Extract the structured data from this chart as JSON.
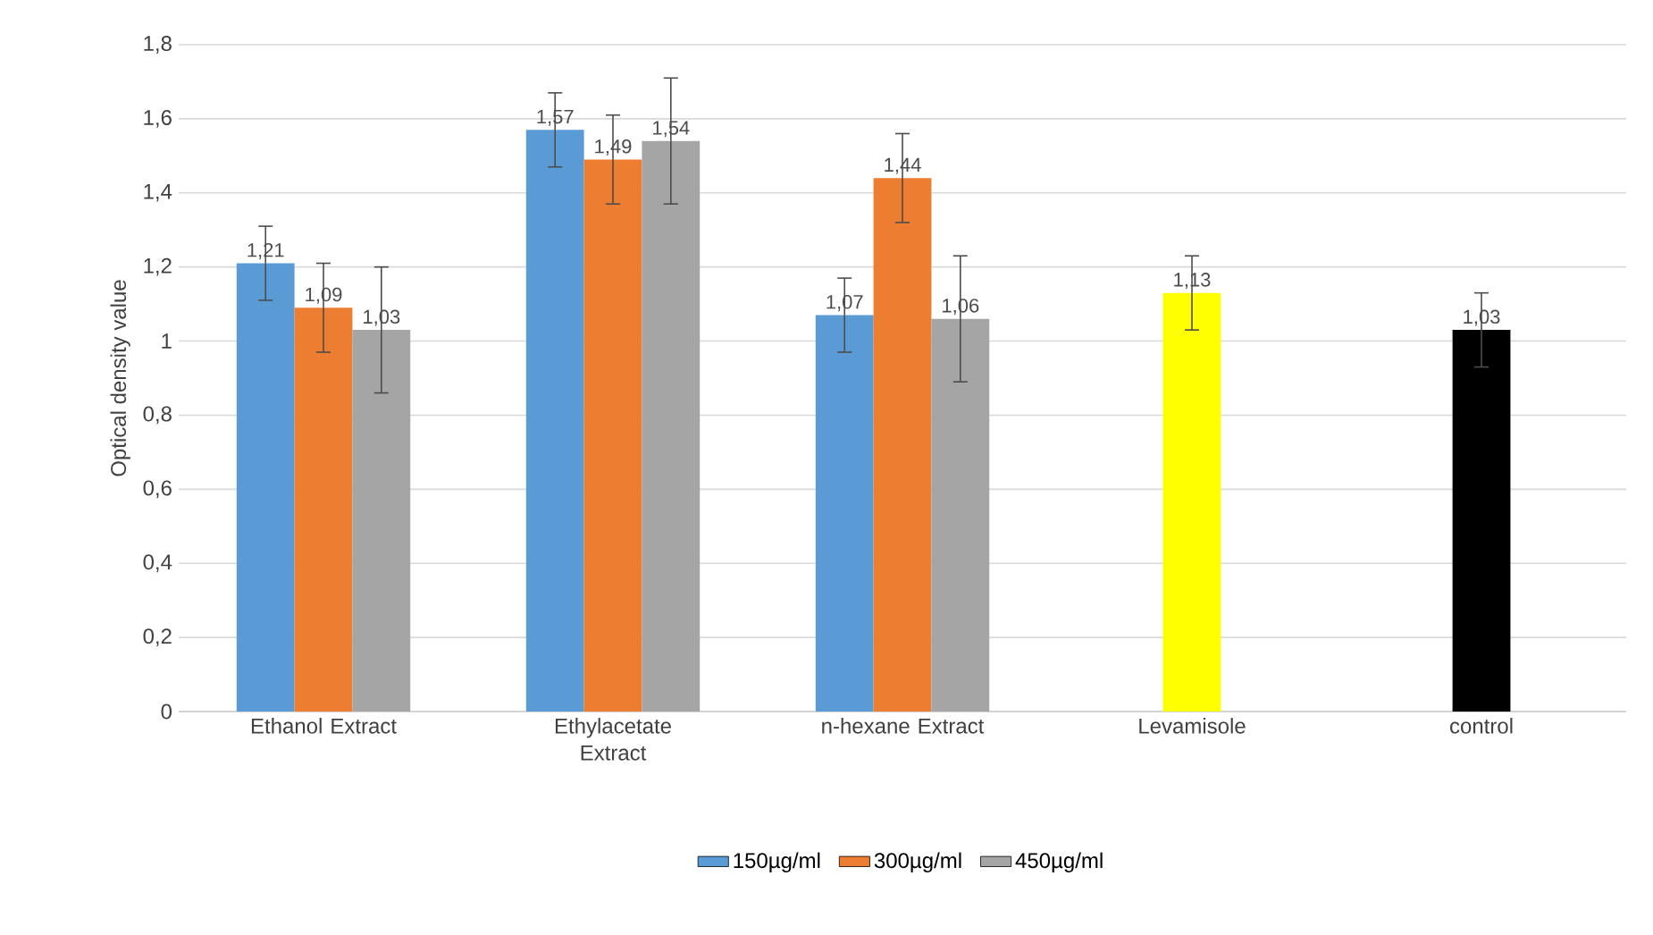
{
  "chart_data": {
    "type": "bar",
    "ylabel": "Optical density value",
    "categories": [
      "Ethanol Extract",
      "Ethylacetate Extract",
      "n-hexane Extract",
      "Levamisole",
      "control"
    ],
    "series": [
      {
        "name": "150µg/ml",
        "color": "#5b9bd5",
        "values": [
          1.21,
          1.57,
          1.07,
          null,
          null
        ],
        "errors": [
          0.1,
          0.1,
          0.1,
          null,
          null
        ],
        "value_labels": [
          "1,21",
          "1,57",
          "1,07",
          null,
          null
        ]
      },
      {
        "name": "300µg/ml",
        "color": "#ed7d31",
        "values": [
          1.09,
          1.49,
          1.44,
          null,
          null
        ],
        "errors": [
          0.12,
          0.12,
          0.12,
          null,
          null
        ],
        "value_labels": [
          "1,09",
          "1,49",
          "1,44",
          null,
          null
        ]
      },
      {
        "name": "450µg/ml",
        "color": "#a5a5a5",
        "values": [
          1.03,
          1.54,
          1.06,
          null,
          null
        ],
        "errors": [
          0.17,
          0.17,
          0.17,
          null,
          null
        ],
        "value_labels": [
          "1,03",
          "1,54",
          "1,06",
          null,
          null
        ]
      },
      {
        "colors": [
          null,
          null,
          null,
          "#ffff00",
          "#000000"
        ],
        "values": [
          null,
          null,
          null,
          1.13,
          1.03
        ],
        "errors": [
          null,
          null,
          null,
          0.1,
          0.1
        ],
        "value_labels": [
          null,
          null,
          null,
          "1,13",
          "1,03"
        ]
      }
    ],
    "ylim": [
      0,
      1.8
    ],
    "yticks": [
      0,
      {
        "value": 0.2,
        "label": "0,2"
      },
      {
        "value": 0.4,
        "label": "0,4"
      },
      {
        "value": 0.6,
        "label": "0,6"
      },
      {
        "value": 0.8,
        "label": "0,8"
      },
      1,
      {
        "value": 1.2,
        "label": "1,2"
      },
      {
        "value": 1.4,
        "label": "1,4"
      },
      {
        "value": 1.6,
        "label": "1,6"
      },
      {
        "value": 1.8,
        "label": "1,8"
      }
    ],
    "grid": "y",
    "legend": "bottom"
  }
}
